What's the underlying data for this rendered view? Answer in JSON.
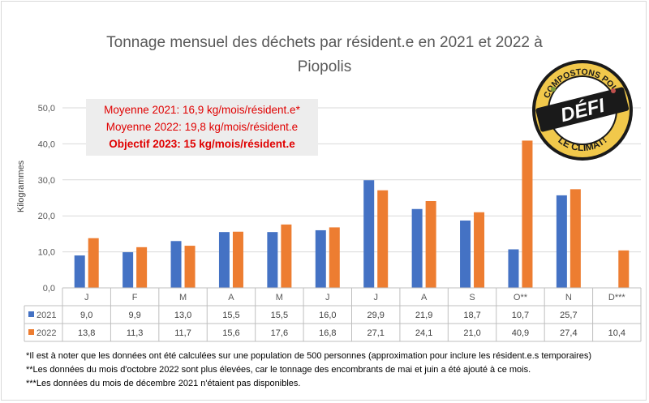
{
  "chart_data": {
    "type": "bar",
    "title_lines": [
      "Tonnage mensuel des déchets par résident.e en 2021 et 2022 à",
      "Piopolis"
    ],
    "ylabel": "Kilogrammes",
    "ylim": [
      0,
      50
    ],
    "yticks": [
      "0,0",
      "10,0",
      "20,0",
      "30,0",
      "40,0",
      "50,0"
    ],
    "grid": true,
    "categories": [
      "J",
      "F",
      "M",
      "A",
      "M",
      "J",
      "J",
      "A",
      "S",
      "O**",
      "N",
      "D***"
    ],
    "series": [
      {
        "name": "2021",
        "color": "#4472c4",
        "values": [
          9.0,
          9.9,
          13.0,
          15.5,
          15.5,
          16.0,
          29.9,
          21.9,
          18.7,
          10.7,
          25.7,
          null
        ],
        "labels": [
          "9,0",
          "9,9",
          "13,0",
          "15,5",
          "15,5",
          "16,0",
          "29,9",
          "21,9",
          "18,7",
          "10,7",
          "25,7",
          ""
        ]
      },
      {
        "name": "2022",
        "color": "#ed7d31",
        "values": [
          13.8,
          11.3,
          11.7,
          15.6,
          17.6,
          16.8,
          27.1,
          24.1,
          21.0,
          40.9,
          27.4,
          10.4
        ],
        "labels": [
          "13,8",
          "11,3",
          "11,7",
          "15,6",
          "17,6",
          "16,8",
          "27,1",
          "24,1",
          "21,0",
          "40,9",
          "27,4",
          "10,4"
        ]
      }
    ],
    "annotations": {
      "avg_2021": "Moyenne 2021: 16,9 kg/mois/résident.e*",
      "avg_2022": "Moyenne 2022: 19,8 kg/mois/résident.e",
      "objective_2023": "Objectif 2023: 15 kg/mois/résident.e"
    }
  },
  "badge": {
    "top_text": "COMPOSTONS POUR",
    "center_text": "DÉFI",
    "bottom_text": "LE CLIMAT!"
  },
  "notes": [
    "*Il est à noter que les données ont été calculées sur une population de 500 personnes (approximation pour inclure les résident.e.s temporaires)",
    "**Les données du mois d'octobre 2022 sont plus élevées, car le tonnage des encombrants de mai et juin a été ajouté à ce mois.",
    "***Les données du mois de décembre 2021 n'étaient pas disponibles."
  ]
}
